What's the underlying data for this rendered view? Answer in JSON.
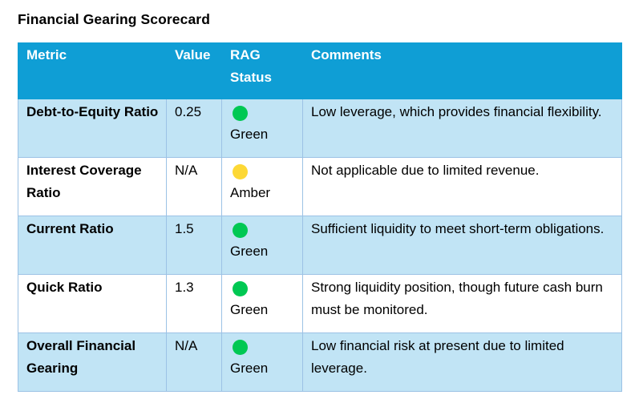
{
  "document": {
    "title": "Financial Gearing Scorecard"
  },
  "table": {
    "headers": {
      "metric": "Metric",
      "value": "Value",
      "rag": "RAG Status",
      "comments": "Comments"
    },
    "rows": [
      {
        "metric": "Debt-to-Equity Ratio",
        "value": "0.25",
        "status": "Green",
        "status_icon": "green-circle-icon",
        "status_color": "#00c853",
        "comment": "Low leverage, which provides financial flexibility."
      },
      {
        "metric": "Interest Coverage Ratio",
        "value": "N/A",
        "status": "Amber",
        "status_icon": "amber-circle-icon",
        "status_color": "#fdd835",
        "comment": "Not applicable due to limited revenue."
      },
      {
        "metric": "Current Ratio",
        "value": "1.5",
        "status": "Green",
        "status_icon": "green-circle-icon",
        "status_color": "#00c853",
        "comment": "Sufficient liquidity to meet short-term obligations."
      },
      {
        "metric": "Quick Ratio",
        "value": "1.3",
        "status": "Green",
        "status_icon": "green-circle-icon",
        "status_color": "#00c853",
        "comment": "Strong liquidity position, though future cash burn must be monitored."
      },
      {
        "metric": "Overall Financial Gearing",
        "value": "N/A",
        "status": "Green",
        "status_icon": "green-circle-icon",
        "status_color": "#00c853",
        "comment": "Low financial risk at present due to limited leverage."
      }
    ]
  },
  "colors": {
    "header_background": "#0f9ed5",
    "band_background": "#c1e4f5",
    "border": "#9cc2e5"
  }
}
